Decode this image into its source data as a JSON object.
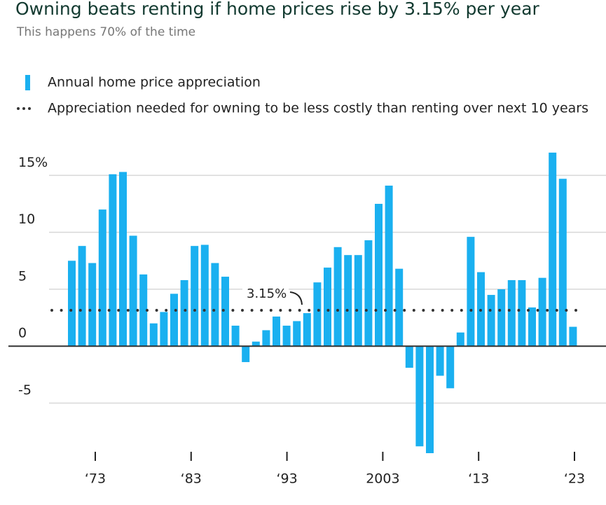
{
  "chart_data": {
    "type": "bar",
    "title": "Owning beats renting if home prices rise by 3.15% per year",
    "subtitle": "This happens 70% of the time",
    "series": [
      {
        "name": "Annual home price appreciation",
        "color": "#1ab0f0",
        "values": [
          7.5,
          8.8,
          7.3,
          12,
          15.1,
          15.3,
          9.7,
          6.3,
          2,
          3,
          4.6,
          5.8,
          8.8,
          8.9,
          7.3,
          6.1,
          1.8,
          -1.4,
          0.4,
          1.4,
          2.6,
          1.8,
          2.2,
          2.9,
          5.6,
          6.9,
          8.7,
          8.0,
          8.0,
          9.3,
          12.5,
          14.1,
          6.8,
          -1.9,
          -8.8,
          -9.4,
          -2.6,
          -3.7,
          1.2,
          9.6,
          6.5,
          4.5,
          5.0,
          5.8,
          5.8,
          3.4,
          6.0,
          17.0,
          14.7,
          1.7
        ]
      },
      {
        "name": "Appreciation needed for owning to be less costly than renting over next 10 years",
        "color": "#333333",
        "value": 3.15,
        "value_label": "3.15%"
      }
    ],
    "ylim": [
      -10.2,
      18.1
    ],
    "yticks": [
      {
        "value": 15,
        "label": "15%"
      },
      10,
      5,
      0,
      -5
    ],
    "xlim": [
      1963.06,
      2026.29
    ],
    "xticks": [
      {
        "value": 1973,
        "label": "‘73"
      },
      {
        "value": 1983,
        "label": "‘83"
      },
      {
        "value": 1993,
        "label": "‘93"
      },
      2003,
      {
        "value": 2013,
        "label": "‘13"
      },
      {
        "value": 2023,
        "label": "‘23"
      }
    ],
    "grid": true
  }
}
